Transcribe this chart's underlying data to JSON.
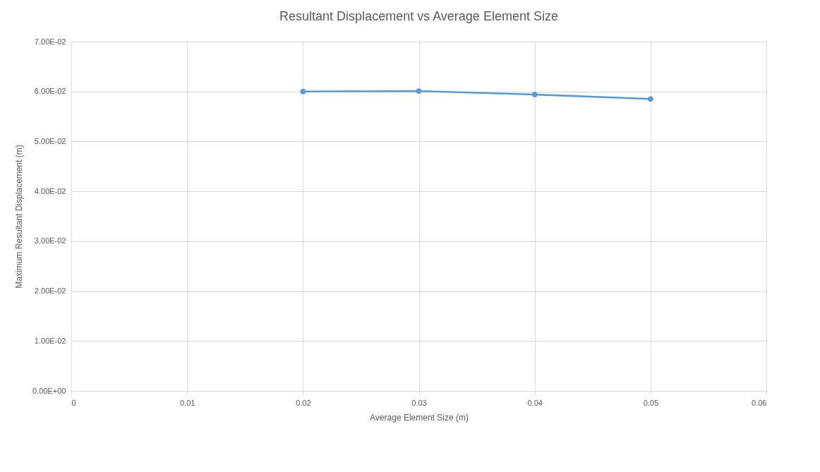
{
  "chart_data": {
    "type": "line",
    "title": "Resultant Displacement vs Average Element Size",
    "xlabel": "Average Element Size (m)",
    "ylabel": "Maximum Resultant Displacement (m)",
    "x": [
      0.02,
      0.03,
      0.04,
      0.05
    ],
    "series": [
      {
        "color": "#5b9bd5",
        "values": [
          0.06,
          0.0601,
          0.0594,
          0.0585
        ]
      }
    ],
    "xlim": [
      0,
      0.06
    ],
    "xticks": [
      0,
      0.01,
      0.02,
      0.03,
      0.04,
      0.05,
      0.06
    ],
    "ylim": [
      0,
      0.07
    ],
    "yticks": [
      {
        "value": 0,
        "label": "0.00E+00"
      },
      {
        "value": 0.01,
        "label": "1.00E-02"
      },
      {
        "value": 0.02,
        "label": "2.00E-02"
      },
      {
        "value": 0.03,
        "label": "3.00E-02"
      },
      {
        "value": 0.04,
        "label": "4.00E-02"
      },
      {
        "value": 0.05,
        "label": "5.00E-02"
      },
      {
        "value": 0.06,
        "label": "6.00E-02"
      },
      {
        "value": 0.07,
        "label": "7.00E-02"
      }
    ],
    "grid": true,
    "marker": "circle"
  }
}
